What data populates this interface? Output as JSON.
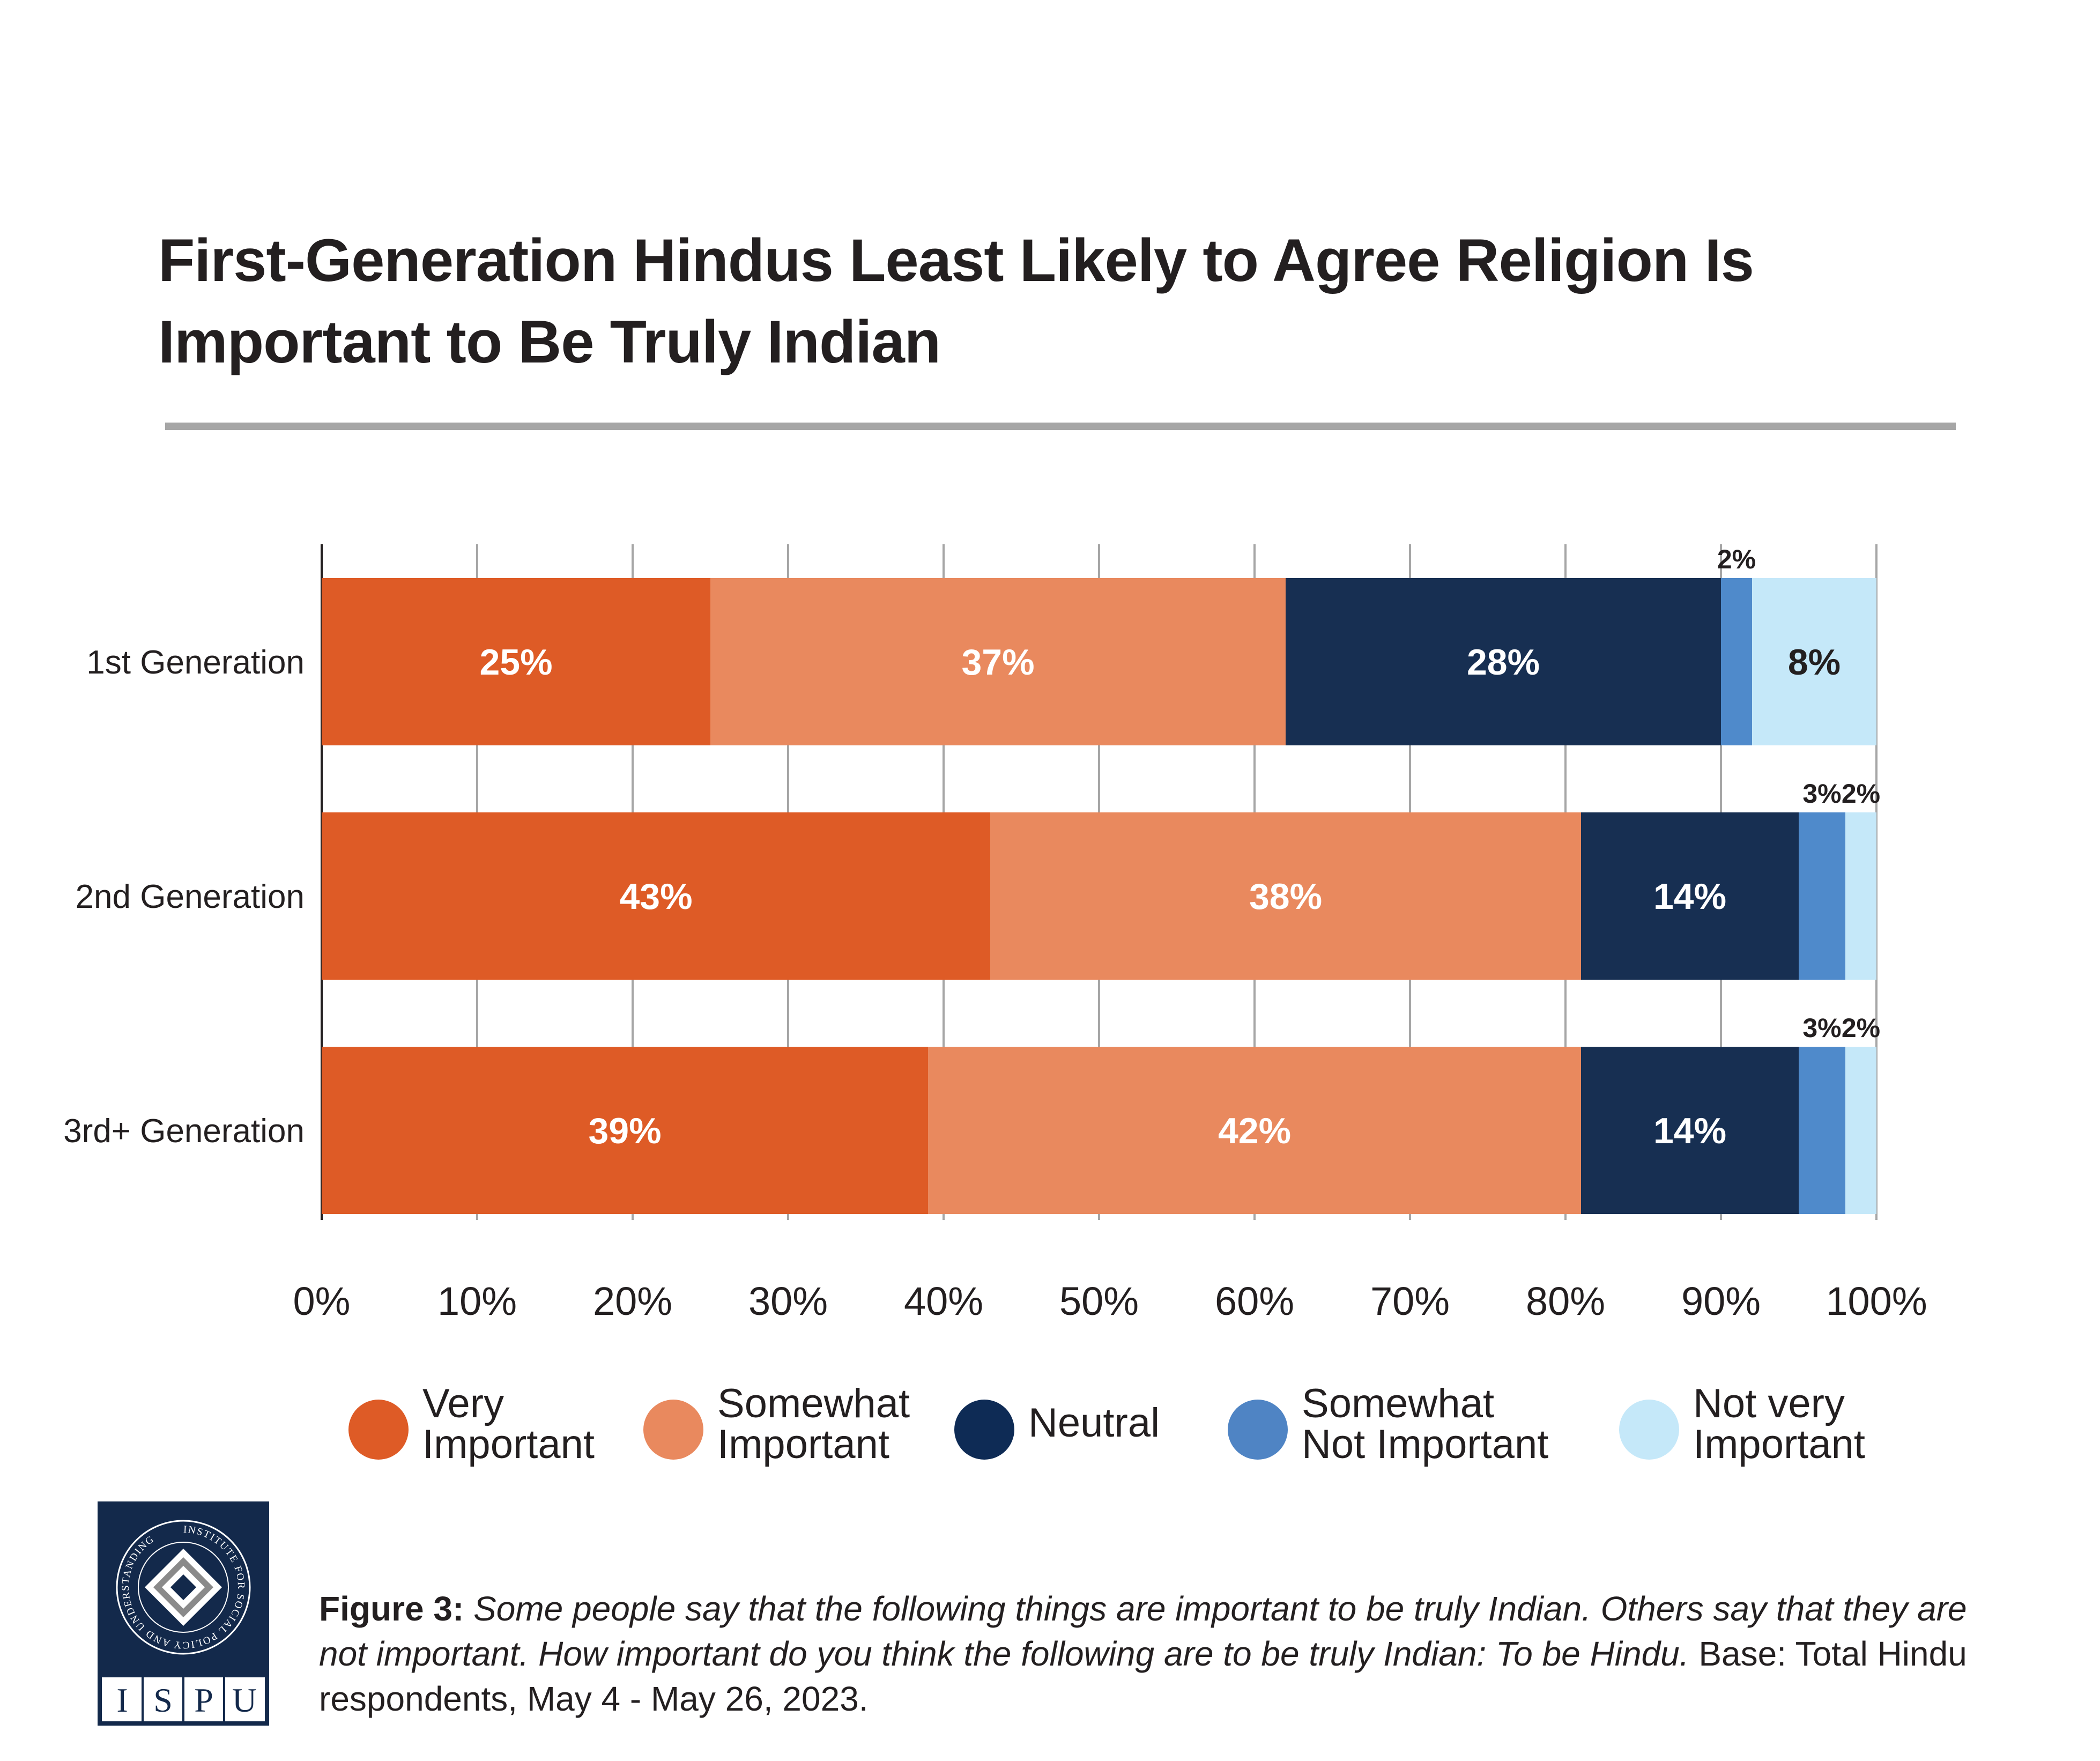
{
  "title_lines": [
    "First-Generation Hindus Least Likely to Agree Religion Is",
    "Important to Be Truly Indian"
  ],
  "chart_data": {
    "type": "bar",
    "orientation": "horizontal",
    "stacked": true,
    "title": "First-Generation Hindus Least Likely to Agree Religion Is Important to Be Truly Indian",
    "categories": [
      "1st Generation",
      "2nd Generation",
      "3rd+ Generation"
    ],
    "series": [
      {
        "name": "Very Important",
        "values": [
          25,
          43,
          39
        ],
        "color": "#de5b26"
      },
      {
        "name": "Somewhat Important",
        "values": [
          37,
          38,
          42
        ],
        "color": "#e9895e"
      },
      {
        "name": "Neutral",
        "values": [
          28,
          14,
          14
        ],
        "color": "#172f52"
      },
      {
        "name": "Somewhat Not Important",
        "values": [
          2,
          3,
          3
        ],
        "color": "#4f8acb"
      },
      {
        "name": "Not very Important",
        "values": [
          8,
          2,
          2
        ],
        "color": "#c5e8f9"
      }
    ],
    "data_labels": [
      [
        "25%",
        "37%",
        "28%",
        "2%",
        "8%"
      ],
      [
        "43%",
        "38%",
        "14%",
        "3%",
        "2%"
      ],
      [
        "39%",
        "42%",
        "14%",
        "3%",
        "2%"
      ]
    ],
    "xlim": [
      0,
      100
    ],
    "x_ticks": [
      0,
      10,
      20,
      30,
      40,
      50,
      60,
      70,
      80,
      90,
      100
    ],
    "x_tick_labels": [
      "0%",
      "10%",
      "20%",
      "30%",
      "40%",
      "50%",
      "60%",
      "70%",
      "80%",
      "90%",
      "100%"
    ],
    "grid": true,
    "legend_position": "bottom",
    "xlabel": "",
    "ylabel": ""
  },
  "legend": [
    {
      "lines": [
        "Very",
        "Important"
      ],
      "color": "#de5b26"
    },
    {
      "lines": [
        "Somewhat",
        "Important"
      ],
      "color": "#e9895e"
    },
    {
      "lines": [
        "Neutral"
      ],
      "color": "#0e2b55"
    },
    {
      "lines": [
        "Somewhat",
        "Not Important"
      ],
      "color": "#4f84c4"
    },
    {
      "lines": [
        "Not very",
        "Important"
      ],
      "color": "#c5e8f9"
    }
  ],
  "caption": {
    "figure_label": "Figure 3:",
    "question": "Some people say that the following things are important to be truly Indian. Others say that they are not important. How important do you think the following are to be truly Indian: To be Hindu.",
    "base": "Base: Total Hindu respondents, May 4 - May 26, 2023."
  },
  "logo": {
    "ring_text": "INSTITUTE FOR SOCIAL POLICY AND UNDERSTANDING",
    "letters": [
      "I",
      "S",
      "P",
      "U"
    ],
    "bg_color": "#13294b"
  }
}
